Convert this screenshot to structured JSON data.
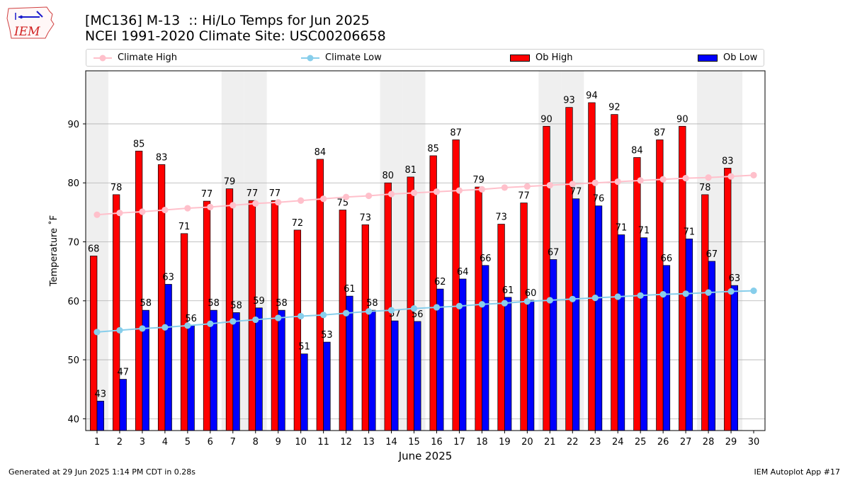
{
  "header": {
    "logo_text": "IEM",
    "title_line1": "[MC136] M-13  :: Hi/Lo Temps for Jun 2025",
    "title_line2": "NCEI 1991-2020 Climate Site: USC00206658"
  },
  "footer": {
    "generated": "Generated at 29 Jun 2025 1:14 PM CDT in 0.28s",
    "app": "IEM Autoplot App #17"
  },
  "colors": {
    "ob_high": "#ff0000",
    "ob_low": "#0000ff",
    "climate_high": "#ffc0cb",
    "climate_low": "#87ceeb",
    "weekend_band": "#efefef",
    "grid": "#b0b0b0"
  },
  "chart_data": {
    "type": "bar",
    "xlabel": "June 2025",
    "ylabel": "Temperature ˚F",
    "ylim": [
      38,
      99
    ],
    "xlim": [
      0.5,
      30.5
    ],
    "yticks": [
      40,
      50,
      60,
      70,
      80,
      90
    ],
    "grid": "horizontal",
    "legend_position": "top",
    "shaded_days": [
      1,
      7,
      8,
      14,
      15,
      21,
      22,
      28,
      29
    ],
    "categories": [
      "1",
      "2",
      "3",
      "4",
      "5",
      "6",
      "7",
      "8",
      "9",
      "10",
      "11",
      "12",
      "13",
      "14",
      "15",
      "16",
      "17",
      "18",
      "19",
      "20",
      "21",
      "22",
      "23",
      "24",
      "25",
      "26",
      "27",
      "28",
      "29",
      "30"
    ],
    "series": [
      {
        "name": "Ob High",
        "kind": "bar",
        "values": [
          67.6,
          78,
          85.4,
          83.1,
          71.4,
          76.9,
          79,
          77,
          77,
          72,
          84,
          75.4,
          72.9,
          80,
          81,
          84.6,
          87.3,
          79.3,
          73,
          76.6,
          89.6,
          92.8,
          93.6,
          91.6,
          84.3,
          87.3,
          89.6,
          78,
          82.5,
          null
        ],
        "labels": [
          "68",
          "78",
          "85",
          "83",
          "71",
          "77",
          "79",
          "77",
          "77",
          "72",
          "84",
          "75",
          "73",
          "80",
          "81",
          "85",
          "87",
          "79",
          "73",
          "77",
          "90",
          "93",
          "94",
          "92",
          "84",
          "87",
          "90",
          "78",
          "83",
          ""
        ]
      },
      {
        "name": "Ob Low",
        "kind": "bar",
        "values": [
          43,
          46.7,
          58.4,
          62.8,
          55.8,
          58.4,
          58,
          58.8,
          58.4,
          51,
          53,
          60.8,
          58.4,
          56.6,
          56.5,
          62,
          63.7,
          66,
          60.6,
          60.1,
          67,
          77.3,
          76.1,
          71.2,
          70.7,
          66,
          70.5,
          66.7,
          62.6,
          null
        ],
        "labels": [
          "43",
          "47",
          "58",
          "63",
          "56",
          "58",
          "58",
          "59",
          "58",
          "51",
          "53",
          "61",
          "58",
          "57",
          "56",
          "62",
          "64",
          "66",
          "61",
          "60",
          "67",
          "77",
          "76",
          "71",
          "71",
          "66",
          "71",
          "67",
          "63",
          ""
        ]
      },
      {
        "name": "Climate High",
        "kind": "line",
        "values": [
          74.6,
          74.9,
          75.1,
          75.4,
          75.7,
          75.9,
          76.2,
          76.5,
          76.7,
          77,
          77.3,
          77.6,
          77.8,
          78.1,
          78.3,
          78.5,
          78.7,
          78.9,
          79.2,
          79.4,
          79.6,
          79.8,
          80,
          80.2,
          80.4,
          80.6,
          80.8,
          80.9,
          81.1,
          81.3
        ]
      },
      {
        "name": "Climate Low",
        "kind": "line",
        "values": [
          54.7,
          55,
          55.3,
          55.5,
          55.8,
          56.1,
          56.5,
          56.8,
          57.1,
          57.4,
          57.6,
          57.9,
          58.2,
          58.4,
          58.7,
          58.9,
          59.1,
          59.4,
          59.6,
          59.9,
          60.1,
          60.3,
          60.5,
          60.7,
          60.9,
          61.1,
          61.2,
          61.4,
          61.6,
          61.7
        ]
      }
    ]
  }
}
